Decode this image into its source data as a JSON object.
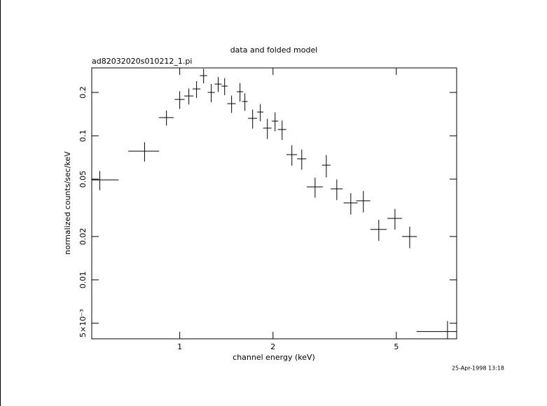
{
  "chart_data": {
    "type": "errorbar",
    "title": "data and folded model",
    "subtitle": "ad82032020s010212_1.pi",
    "x_label": "channel energy (keV)",
    "y_label": "normalized counts/sec/keV",
    "timestamp": "25-Apr-1998 13:18",
    "x_log": true,
    "y_log": true,
    "color": "#000000",
    "xlim": [
      0.52,
      7.83
    ],
    "ylim": [
      0.0039,
      0.296
    ],
    "xticks": [
      1,
      2,
      5
    ],
    "yticks": [
      {
        "value": 0.005,
        "label": "5×10⁻³"
      },
      0.01,
      0.02,
      0.05,
      0.1,
      0.2
    ],
    "x": [
      0.552,
      0.77,
      0.906,
      1.0,
      1.07,
      1.133,
      1.194,
      1.264,
      1.331,
      1.396,
      1.47,
      1.565,
      1.623,
      1.719,
      1.82,
      1.918,
      2.031,
      2.14,
      2.301,
      2.476,
      2.734,
      2.972,
      3.213,
      3.565,
      3.915,
      4.39,
      4.95,
      5.523,
      7.315
    ],
    "xerr": [
      0.083,
      0.088,
      0.05,
      0.037,
      0.036,
      0.033,
      0.032,
      0.033,
      0.035,
      0.033,
      0.046,
      0.037,
      0.034,
      0.058,
      0.043,
      0.06,
      0.048,
      0.068,
      0.091,
      0.084,
      0.163,
      0.094,
      0.143,
      0.186,
      0.205,
      0.264,
      0.27,
      0.302,
      1.5
    ],
    "values": [
      0.0494,
      0.0782,
      0.1337,
      0.1788,
      0.189,
      0.2115,
      0.2614,
      0.2,
      0.2286,
      0.2213,
      0.1672,
      0.2023,
      0.173,
      0.1322,
      0.1462,
      0.1131,
      0.1265,
      0.1106,
      0.074,
      0.0692,
      0.0442,
      0.0625,
      0.0428,
      0.0342,
      0.0354,
      0.0224,
      0.0267,
      0.02,
      0.00438
    ],
    "yerr": [
      0.0075,
      0.012,
      0.016,
      0.025,
      0.024,
      0.028,
      0.03,
      0.029,
      0.027,
      0.03,
      0.023,
      0.03,
      0.024,
      0.02,
      0.02,
      0.018,
      0.019,
      0.017,
      0.012,
      0.011,
      0.007,
      0.011,
      0.007,
      0.0058,
      0.006,
      0.0037,
      0.0044,
      0.0034,
      0.0008
    ]
  }
}
